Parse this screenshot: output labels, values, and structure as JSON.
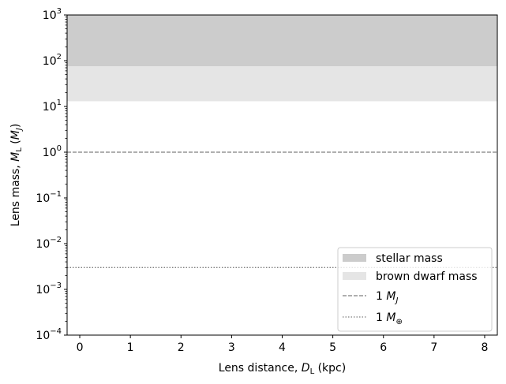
{
  "chart_data": {
    "type": "line",
    "xlabel": {
      "prefix": "Lens distance, ",
      "var": "D",
      "sub": "L",
      "suffix": " (kpc)"
    },
    "ylabel": {
      "prefix": "Lens mass, ",
      "var": "M",
      "sub": "L",
      "suffix_open": " (",
      "unit": "M",
      "unit_sub": "J",
      "suffix_close": ")"
    },
    "x_ticks": [
      "0",
      "1",
      "2",
      "3",
      "4",
      "5",
      "6",
      "7",
      "8"
    ],
    "x_tick_values": [
      0,
      1,
      2,
      3,
      4,
      5,
      6,
      7,
      8
    ],
    "xlim": [
      -0.25,
      8.25
    ],
    "y_scale": "log",
    "ylim": [
      0.0001,
      1000
    ],
    "y_tick_exponents": [
      "3",
      "2",
      "1",
      "0",
      "−1",
      "−2",
      "−3",
      "−4"
    ],
    "y_tick_values": [
      1000,
      100,
      10,
      1,
      0.1,
      0.01,
      0.001,
      0.0001
    ],
    "bands": [
      {
        "name": "stellar mass",
        "y_min": 75,
        "y_max": 1000,
        "color": "#cccccc"
      },
      {
        "name": "brown dwarf mass",
        "y_min": 13,
        "y_max": 75,
        "color": "#e5e5e5"
      }
    ],
    "lines": [
      {
        "name_prefix": "1 ",
        "name_var": "M",
        "name_sub": "J",
        "y": 1,
        "style": "dashed",
        "color": "#7f7f7f"
      },
      {
        "name_prefix": "1 ",
        "name_var": "M",
        "name_sub": "⊕",
        "y": 0.003,
        "style": "dotted",
        "color": "#7f7f7f"
      }
    ],
    "legend_position": "lower-right",
    "grid": false
  }
}
